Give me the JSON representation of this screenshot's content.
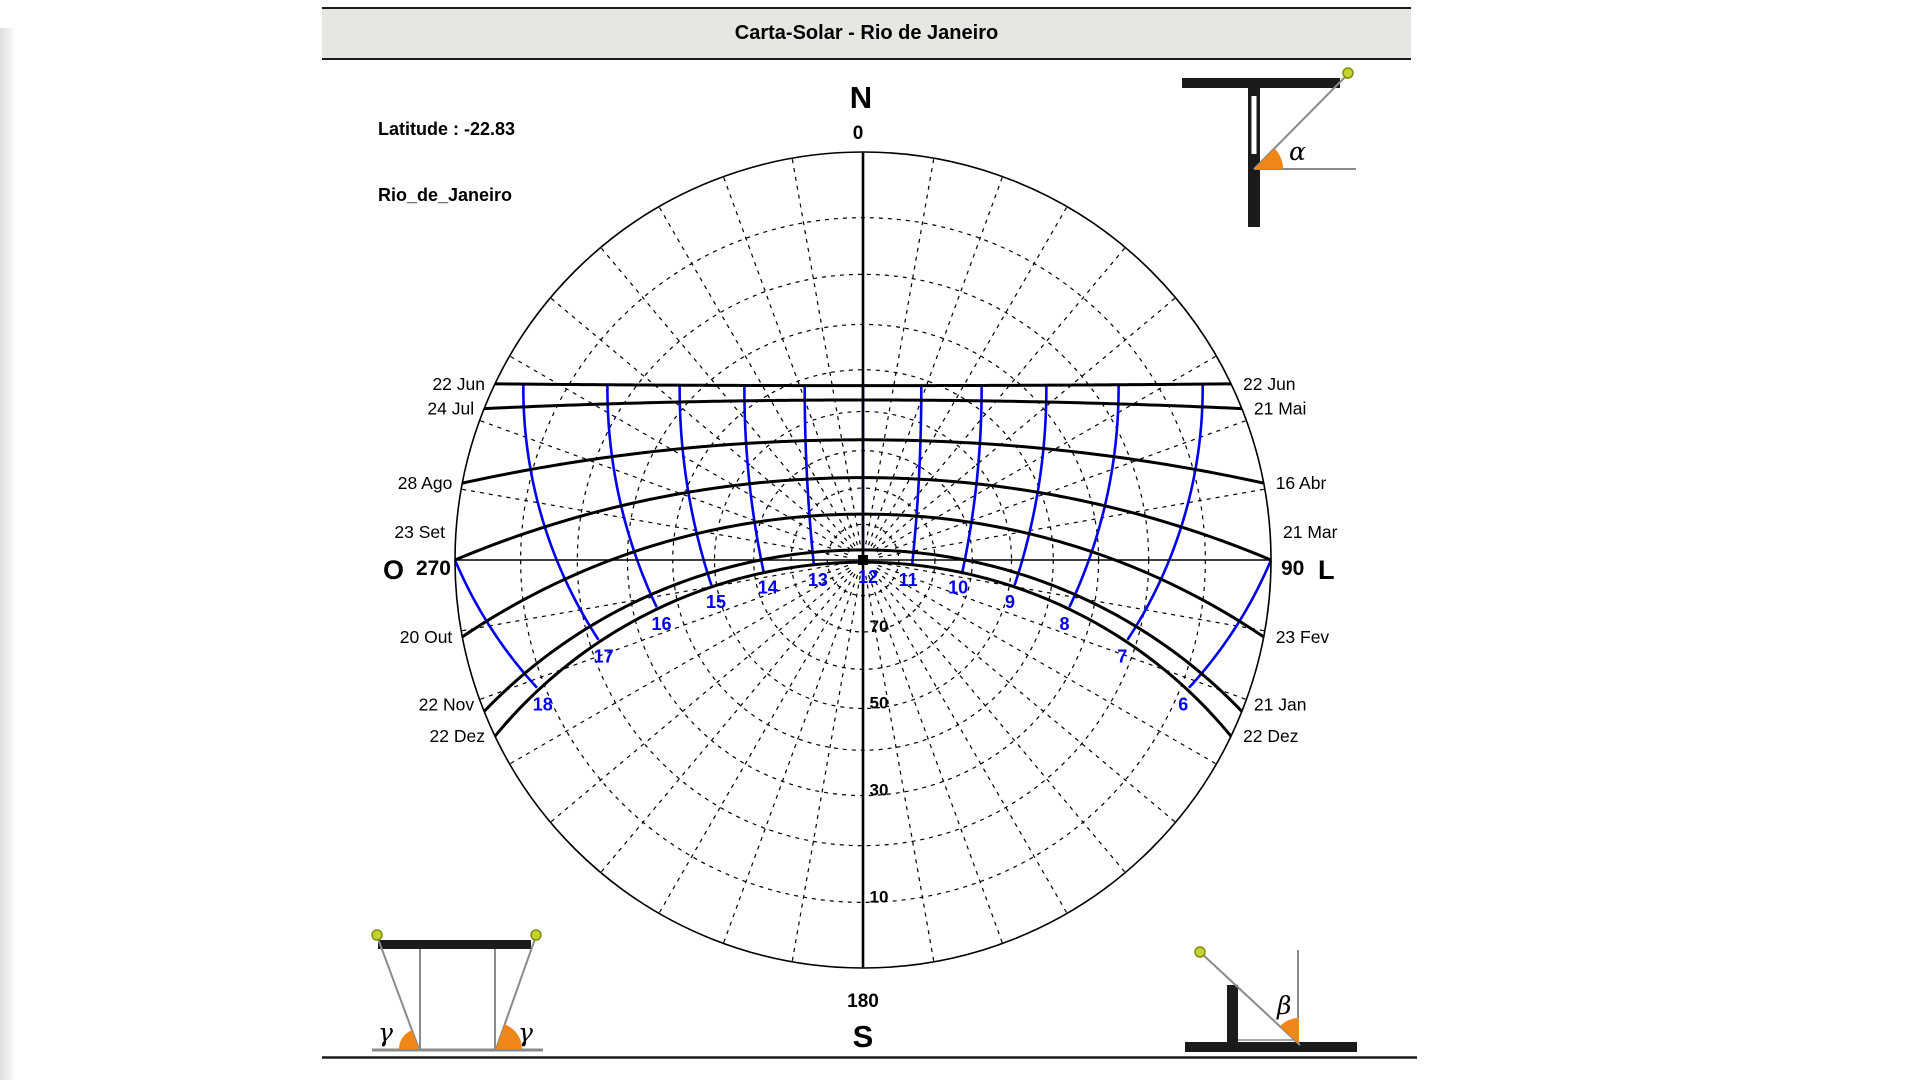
{
  "window": {
    "title": "Carta-Solar - Rio de Janeiro"
  },
  "location": {
    "latitude_label": "Latitude : -22.83",
    "name_label": "Rio_de_Janeiro"
  },
  "compass": {
    "north": "N",
    "south": "S",
    "west": "O",
    "east": "L"
  },
  "angle_symbols": {
    "alpha": "α",
    "beta": "β",
    "gamma": "γ"
  },
  "chart_data": {
    "type": "sun-path",
    "projection": "stereographic",
    "latitude": -22.83,
    "azimuth_labels": {
      "north": "0",
      "south": "180",
      "west": "270",
      "east": "90"
    },
    "altitude_circle_labels": [
      70,
      50,
      30,
      10
    ],
    "azimuth_grid_step_deg": 10,
    "altitude_grid_step_deg": 10,
    "hour_line_color": "#0000ee",
    "hours": [
      6,
      7,
      8,
      9,
      10,
      11,
      12,
      13,
      14,
      15,
      16,
      17,
      18
    ],
    "date_lines": [
      {
        "declination_deg": 23.45,
        "label_left": "22 Jun",
        "label_right": "22 Jun"
      },
      {
        "declination_deg": 20,
        "label_left": "24 Jul",
        "label_right": "21 Mai"
      },
      {
        "declination_deg": 10,
        "label_left": "28 Ago",
        "label_right": "16 Abr"
      },
      {
        "declination_deg": 0,
        "label_left": "23 Set",
        "label_right": "21 Mar",
        "label_dy": -28
      },
      {
        "declination_deg": -10,
        "label_left": "20 Out",
        "label_right": "23 Fev"
      },
      {
        "declination_deg": -20,
        "label_left": "22 Nov",
        "label_right": "21 Jan",
        "label_dy": -7
      },
      {
        "declination_deg": -23.45,
        "label_left": "22 Dez",
        "label_right": "22 Dez"
      }
    ],
    "accent_colors": {
      "sun": "#c3d42c",
      "sun_outline": "#7d8f0c",
      "angle_wedge": "#ee8618",
      "structure": "#1b1b1b",
      "thin_line": "#8a8a8a"
    }
  }
}
